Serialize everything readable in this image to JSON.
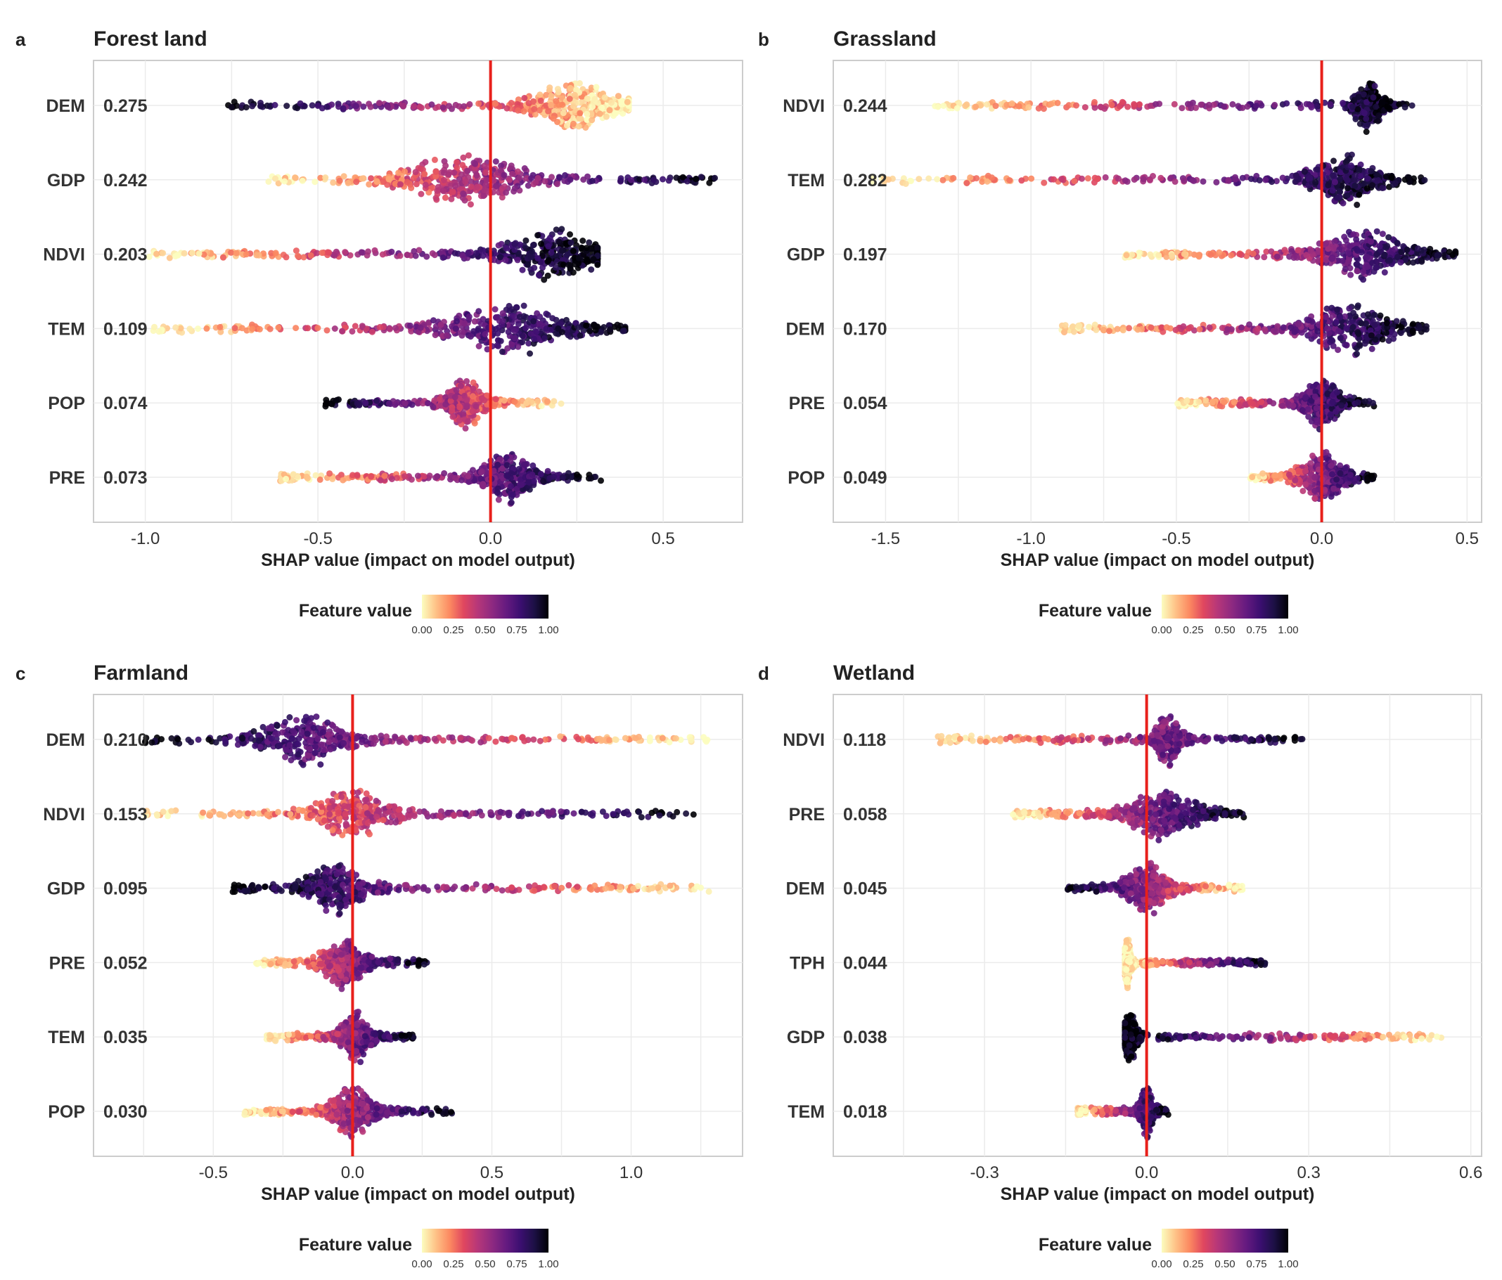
{
  "chart_data": [
    {
      "type": "scatter",
      "panel_letter": "a",
      "title": "Forest land",
      "xlabel": "SHAP value (impact on model output)",
      "ylabel": "",
      "xlim": [
        -1.15,
        0.73
      ],
      "xticks": [
        -1.0,
        -0.5,
        0.0,
        0.5
      ],
      "xtick_labels": [
        "-1.0",
        "-0.5",
        "0.0",
        "0.5"
      ],
      "reference_line": 0.0,
      "features": [
        {
          "name": "DEM",
          "importance": "0.275",
          "min": -0.76,
          "max": 0.4,
          "bulk": 0.25,
          "trend": -1,
          "spread": 0.09
        },
        {
          "name": "GDP",
          "importance": "0.242",
          "min": -0.65,
          "max": 0.65,
          "bulk": -0.07,
          "trend": 1,
          "spread": 0.13
        },
        {
          "name": "NDVI",
          "importance": "0.203",
          "min": -1.0,
          "max": 0.31,
          "bulk": 0.18,
          "trend": 1,
          "spread": 0.1
        },
        {
          "name": "TEM",
          "importance": "0.109",
          "min": -0.98,
          "max": 0.39,
          "bulk": 0.05,
          "trend": 1,
          "spread": 0.14
        },
        {
          "name": "POP",
          "importance": "0.074",
          "min": -0.48,
          "max": 0.21,
          "bulk": -0.07,
          "trend": -1,
          "spread": 0.04
        },
        {
          "name": "PRE",
          "importance": "0.073",
          "min": -0.62,
          "max": 0.32,
          "bulk": 0.05,
          "trend": 1,
          "spread": 0.06
        }
      ],
      "legend": {
        "title": "Feature value",
        "ticks": [
          "0.00",
          "0.25",
          "0.50",
          "0.75",
          "1.00"
        ]
      }
    },
    {
      "type": "scatter",
      "panel_letter": "b",
      "title": "Grassland",
      "xlabel": "SHAP value (impact on model output)",
      "ylabel": "",
      "xlim": [
        -1.68,
        0.55
      ],
      "xticks": [
        -1.5,
        -1.0,
        -0.5,
        0.0,
        0.5
      ],
      "xtick_labels": [
        "-1.5",
        "-1.0",
        "-0.5",
        "0.0",
        "0.5"
      ],
      "reference_line": 0.0,
      "features": [
        {
          "name": "NDVI",
          "importance": "0.244",
          "min": -1.34,
          "max": 0.32,
          "bulk": 0.16,
          "trend": 1,
          "spread": 0.04
        },
        {
          "name": "TEM",
          "importance": "0.282",
          "min": -1.55,
          "max": 0.36,
          "bulk": 0.08,
          "trend": 1,
          "spread": 0.09
        },
        {
          "name": "GDP",
          "importance": "0.197",
          "min": -0.68,
          "max": 0.46,
          "bulk": 0.15,
          "trend": 1,
          "spread": 0.12
        },
        {
          "name": "DEM",
          "importance": "0.170",
          "min": -0.9,
          "max": 0.36,
          "bulk": 0.1,
          "trend": 1,
          "spread": 0.12
        },
        {
          "name": "PRE",
          "importance": "0.054",
          "min": -0.5,
          "max": 0.18,
          "bulk": 0.0,
          "trend": 1,
          "spread": 0.05
        },
        {
          "name": "POP",
          "importance": "0.049",
          "min": -0.25,
          "max": 0.18,
          "bulk": 0.0,
          "trend": 1,
          "spread": 0.06
        }
      ],
      "legend": {
        "title": "Feature value",
        "ticks": [
          "0.00",
          "0.25",
          "0.50",
          "0.75",
          "1.00"
        ]
      }
    },
    {
      "type": "scatter",
      "panel_letter": "c",
      "title": "Farmland",
      "xlabel": "SHAP value (impact on model output)",
      "ylabel": "",
      "xlim": [
        -0.93,
        1.4
      ],
      "xticks": [
        -0.5,
        0.0,
        0.5,
        1.0
      ],
      "xtick_labels": [
        "-0.5",
        "0.0",
        "0.5",
        "1.0"
      ],
      "reference_line": 0.0,
      "features": [
        {
          "name": "DEM",
          "importance": "0.210",
          "min": -0.75,
          "max": 1.28,
          "bulk": -0.17,
          "trend": -1,
          "spread": 0.12
        },
        {
          "name": "NDVI",
          "importance": "0.153",
          "min": -0.75,
          "max": 1.24,
          "bulk": 0.0,
          "trend": 1,
          "spread": 0.1
        },
        {
          "name": "GDP",
          "importance": "0.095",
          "min": -0.45,
          "max": 1.28,
          "bulk": -0.06,
          "trend": -1,
          "spread": 0.08
        },
        {
          "name": "PRE",
          "importance": "0.052",
          "min": -0.35,
          "max": 0.27,
          "bulk": -0.03,
          "trend": 1,
          "spread": 0.06
        },
        {
          "name": "TEM",
          "importance": "0.035",
          "min": -0.31,
          "max": 0.22,
          "bulk": 0.01,
          "trend": 1,
          "spread": 0.04
        },
        {
          "name": "POP",
          "importance": "0.030",
          "min": -0.39,
          "max": 0.36,
          "bulk": 0.0,
          "trend": 1,
          "spread": 0.06
        }
      ],
      "legend": {
        "title": "Feature value",
        "ticks": [
          "0.00",
          "0.25",
          "0.50",
          "0.75",
          "1.00"
        ]
      }
    },
    {
      "type": "scatter",
      "panel_letter": "d",
      "title": "Wetland",
      "xlabel": "SHAP value (impact on model output)",
      "ylabel": "",
      "xlim": [
        -0.58,
        0.62
      ],
      "xticks": [
        -0.3,
        0.0,
        0.3,
        0.6
      ],
      "xtick_labels": [
        "-0.3",
        "0.0",
        "0.3",
        "0.6"
      ],
      "reference_line": 0.0,
      "features": [
        {
          "name": "NDVI",
          "importance": "0.118",
          "min": -0.39,
          "max": 0.3,
          "bulk": 0.04,
          "trend": 1,
          "spread": 0.02
        },
        {
          "name": "PRE",
          "importance": "0.058",
          "min": -0.25,
          "max": 0.18,
          "bulk": 0.03,
          "trend": 1,
          "spread": 0.05
        },
        {
          "name": "DEM",
          "importance": "0.045",
          "min": -0.15,
          "max": 0.18,
          "bulk": 0.0,
          "trend": -1,
          "spread": 0.03
        },
        {
          "name": "TPH",
          "importance": "0.044",
          "min": -0.04,
          "max": 0.22,
          "bulk": -0.035,
          "trend": 1,
          "spread": 0.005
        },
        {
          "name": "GDP",
          "importance": "0.038",
          "min": -0.04,
          "max": 0.55,
          "bulk": -0.03,
          "trend": -1,
          "spread": 0.01
        },
        {
          "name": "TEM",
          "importance": "0.018",
          "min": -0.13,
          "max": 0.04,
          "bulk": 0.0,
          "trend": 1,
          "spread": 0.01
        }
      ],
      "legend": {
        "title": "Feature value",
        "ticks": [
          "0.00",
          "0.25",
          "0.50",
          "0.75",
          "1.00"
        ]
      }
    }
  ],
  "colors": {
    "reference_line": "#e8201b",
    "colormap": [
      "#fcfdbf",
      "#fec287",
      "#fc8961",
      "#e0475f",
      "#b73779",
      "#8c2981",
      "#641a80",
      "#3b0f70",
      "#1c1044",
      "#000004"
    ],
    "grid": "#ebebeb",
    "panel_border": "#cccccc",
    "text": "#222222"
  }
}
